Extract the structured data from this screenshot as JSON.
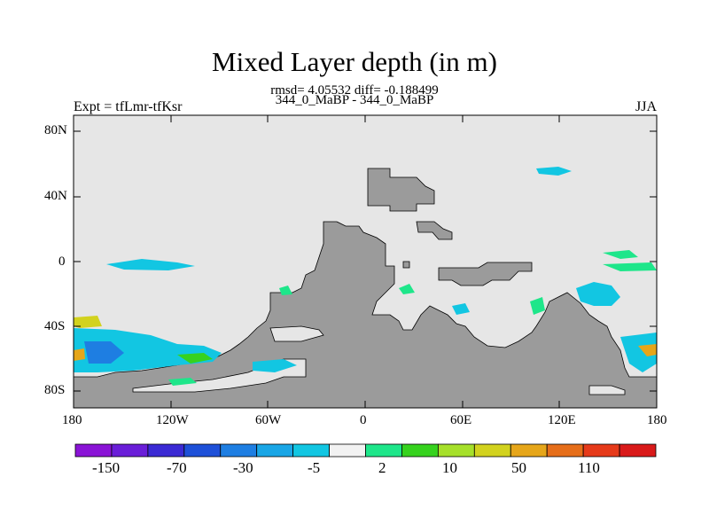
{
  "title": "Mixed Layer depth (in m)",
  "stats": "rmsd= 4.05532 diff= -0.188499",
  "subtitle": "344_0_MaBP - 344_0_MaBP",
  "left_label": "Expt = tfLmr-tfKsr",
  "right_label": "JJA",
  "lat_ticks": [
    "80N",
    "40N",
    "0",
    "40S",
    "80S"
  ],
  "lon_ticks": [
    "180",
    "120W",
    "60W",
    "0",
    "60E",
    "120E",
    "180"
  ],
  "colors": {
    "background": "#e6e6e6",
    "land": "#9b9b9b",
    "colorbar": [
      "#8a14d6",
      "#6a1ed8",
      "#3b2ad4",
      "#1e50d8",
      "#1e7ee2",
      "#1aa6e6",
      "#12c6e2",
      "#f2f2f2",
      "#1ee68a",
      "#36d21e",
      "#a6e02a",
      "#d2d21e",
      "#e6a61a",
      "#e66e1a",
      "#e63a1a",
      "#d91a1a"
    ]
  },
  "colorbar_labels": [
    "-150",
    "-70",
    "-30",
    "-5",
    "2",
    "10",
    "50",
    "110"
  ],
  "chart_data": {
    "type": "map",
    "projection": "cylindrical equidistant",
    "variable": "Mixed Layer depth (in m)",
    "lon_range": [
      -180,
      180
    ],
    "lat_range": [
      -90,
      90
    ],
    "colorbar_levels": [
      "-150",
      "-70",
      "-30",
      "-5",
      "2",
      "10",
      "50",
      "110"
    ]
  }
}
